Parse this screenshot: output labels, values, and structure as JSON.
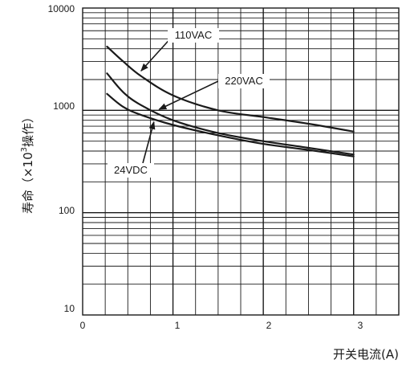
{
  "chart_data": {
    "type": "line",
    "title": "",
    "xlabel": "开关电流(A)",
    "ylabel_main": "寿命（×10",
    "ylabel_sup": "3",
    "ylabel_tail": "操作）",
    "xlim": [
      0,
      3.5
    ],
    "ylim": [
      10,
      10000
    ],
    "yscale": "log",
    "grid": true,
    "x_ticks": [
      0,
      1,
      2,
      3
    ],
    "x_tick_labels": [
      "0",
      "1",
      "2",
      "3"
    ],
    "y_ticks": [
      10,
      100,
      1000,
      10000
    ],
    "y_tick_labels": [
      "10",
      "100",
      "1000",
      "10000"
    ],
    "series": [
      {
        "name": "110VAC",
        "x": [
          0.27,
          0.45,
          0.65,
          1.0,
          1.5,
          2.0,
          2.5,
          3.0
        ],
        "y": [
          4200,
          3000,
          2150,
          1400,
          1000,
          860,
          740,
          620
        ]
      },
      {
        "name": "220VAC",
        "x": [
          0.27,
          0.45,
          0.65,
          1.0,
          1.5,
          2.0,
          2.5,
          3.0
        ],
        "y": [
          2300,
          1500,
          1120,
          800,
          600,
          500,
          430,
          370
        ]
      },
      {
        "name": "24VDC",
        "x": [
          0.27,
          0.45,
          0.65,
          1.0,
          1.5,
          2.0,
          2.5,
          3.0
        ],
        "y": [
          1450,
          1080,
          900,
          720,
          570,
          470,
          410,
          355
        ]
      }
    ],
    "annotations": [
      {
        "label": "110VAC",
        "series": "110VAC",
        "arrow_to_x": 0.62
      },
      {
        "label": "220VAC",
        "series": "220VAC",
        "arrow_to_x": 0.82
      },
      {
        "label": "24VDC",
        "series": "24VDC",
        "arrow_to_x": 0.78
      }
    ]
  }
}
